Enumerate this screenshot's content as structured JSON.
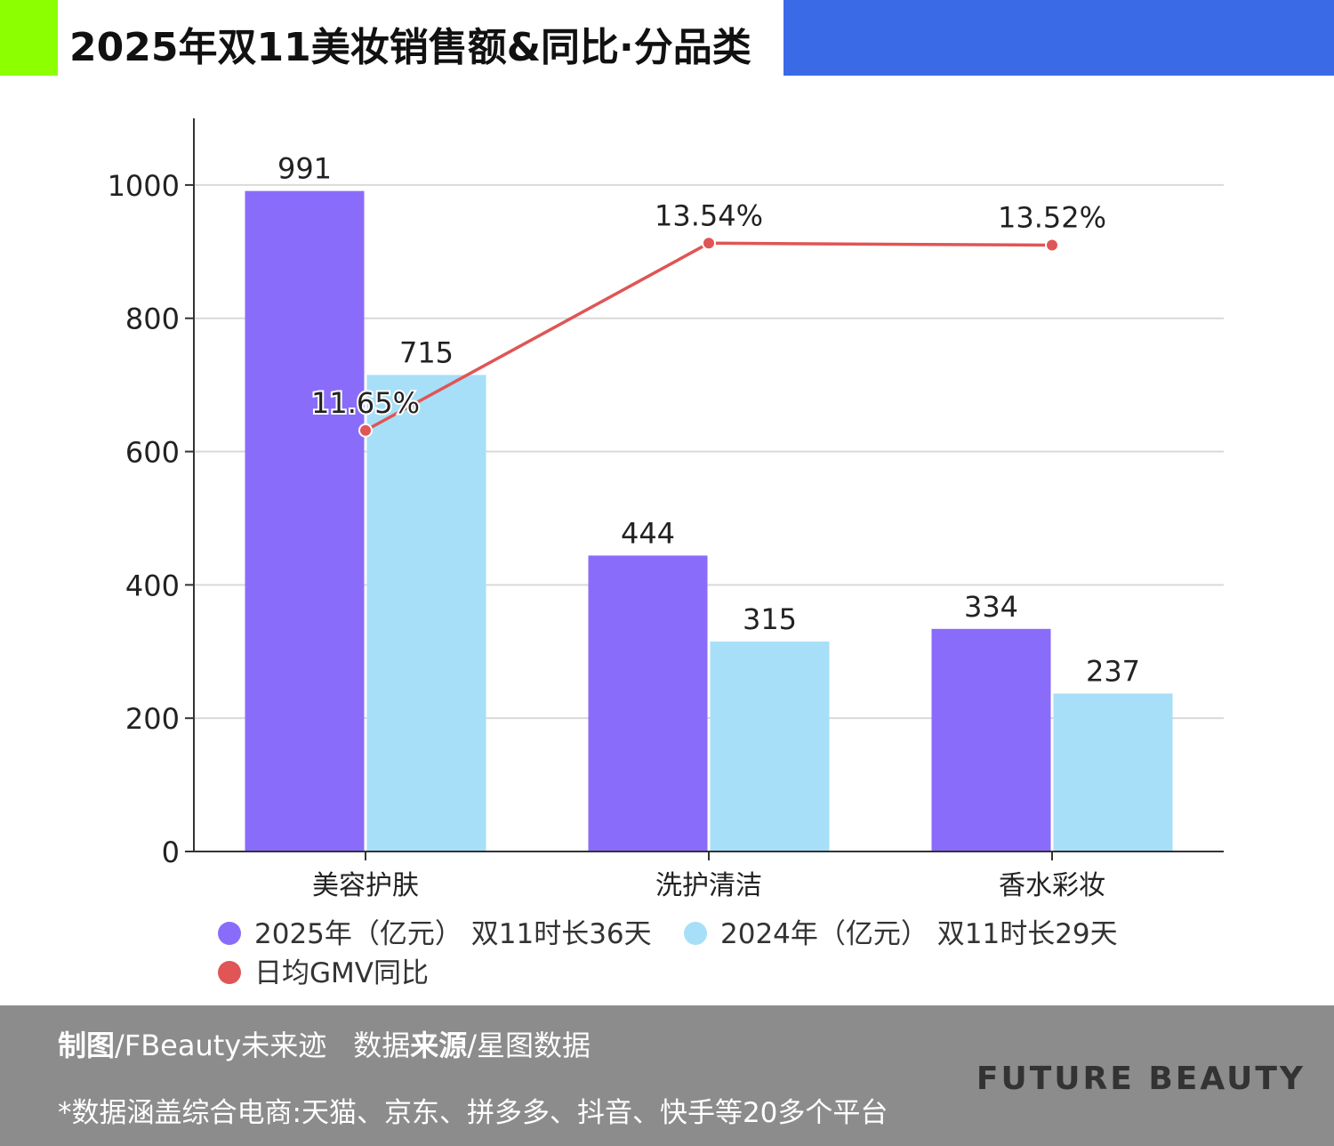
{
  "header": {
    "title": "2025年双11美妆销售额&同比·分品类"
  },
  "colors": {
    "bar2025": "#8a6cfb",
    "bar2024": "#a7dff8",
    "line": "#e05555",
    "green": "#8cff00",
    "blue": "#3a6ae6"
  },
  "chart_data": {
    "type": "bar",
    "title": "2025年双11美妆销售额&同比·分品类",
    "categories": [
      "美容护肤",
      "洗护清洁",
      "香水彩妆"
    ],
    "series": [
      {
        "name": "2025年（亿元） 双11时长36天",
        "type": "bar",
        "values": [
          991,
          444,
          334
        ]
      },
      {
        "name": "2024年（亿元） 双11时长29天",
        "type": "bar",
        "values": [
          715,
          315,
          237
        ]
      },
      {
        "name": "日均GMV同比",
        "type": "line",
        "values": [
          11.65,
          13.54,
          13.52
        ],
        "labels": [
          "11.65%",
          "13.54%",
          "13.52%"
        ]
      }
    ],
    "yticks": [
      "0",
      "200",
      "400",
      "600",
      "800",
      "1000"
    ],
    "ylim": [
      0,
      1100
    ],
    "line_ylim": [
      7.4,
      14.8
    ],
    "grid": true,
    "legend_position": "bottom"
  },
  "footer": {
    "credit_label1": "制图",
    "credit_value1": "/FBeauty未来迹",
    "credit_label2_a": "数据",
    "credit_label2_b": "来源",
    "credit_value2": "/星图数据",
    "note": "*数据涵盖综合电商:天猫、京东、拼多多、抖音、快手等20多个平台",
    "brand": "FUTURE BEAUTY"
  }
}
